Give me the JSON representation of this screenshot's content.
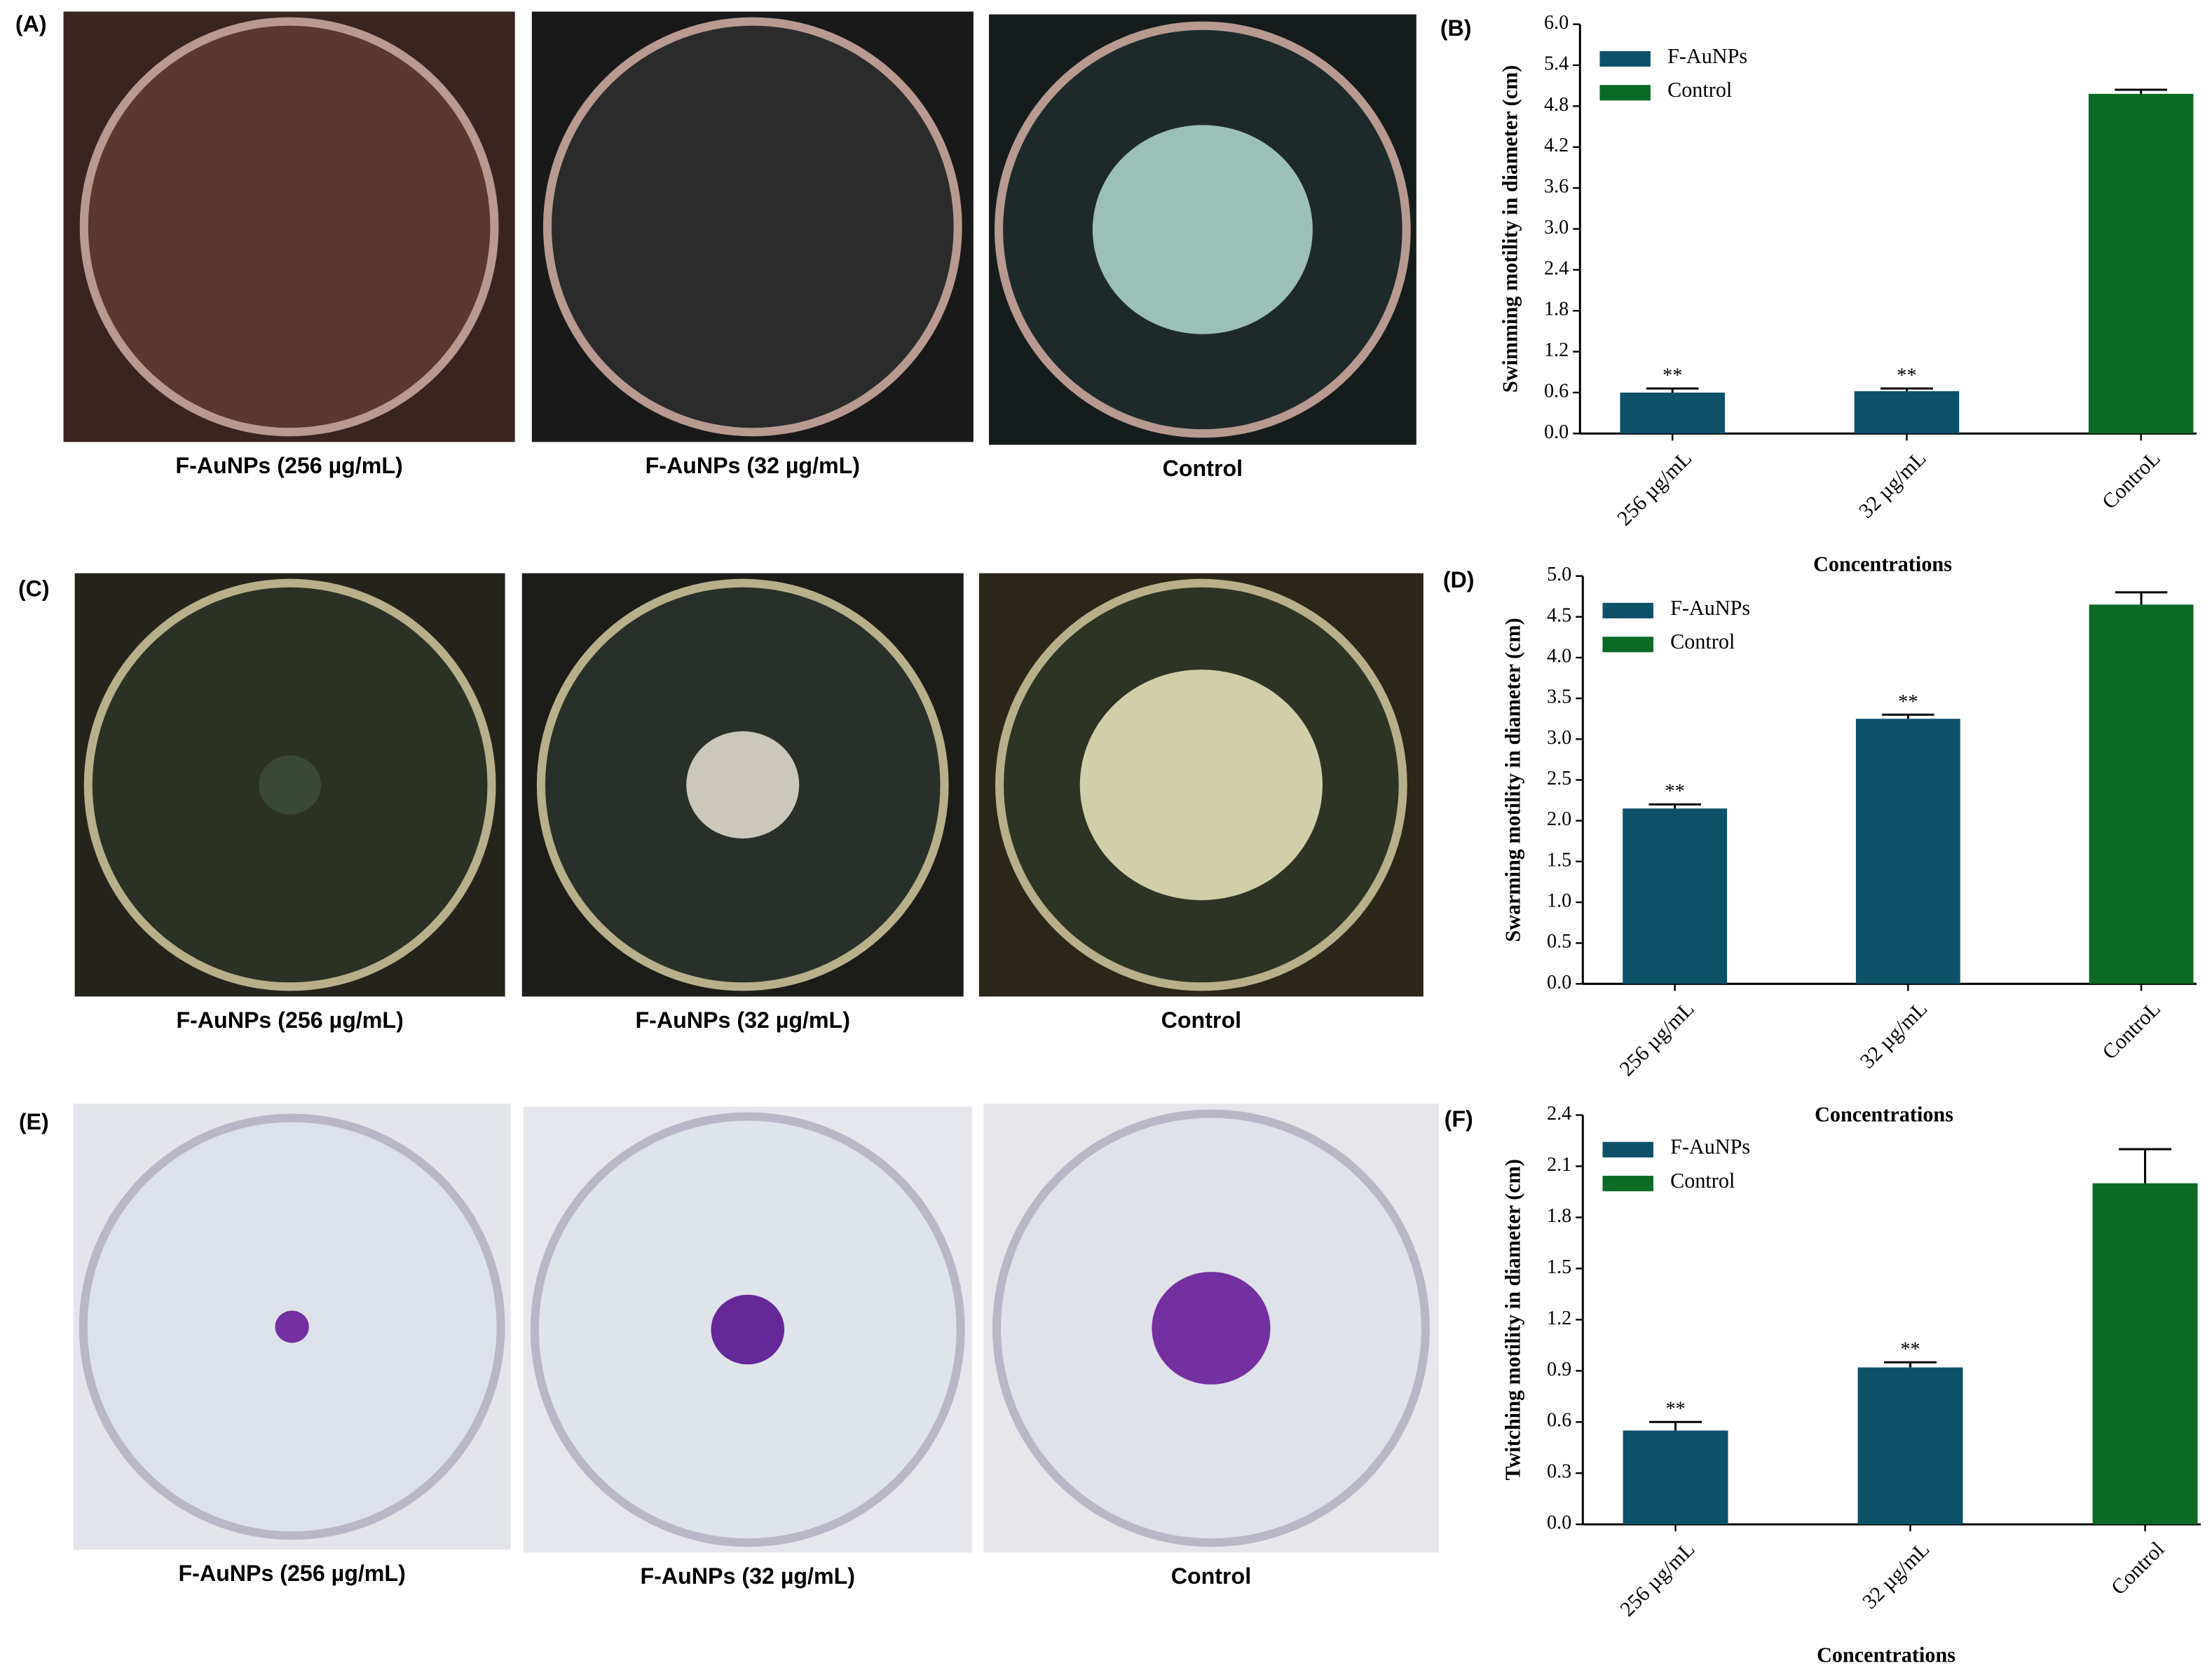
{
  "panels": [
    {
      "label": "(A)",
      "captions": [
        "F-AuNPs (256 µg/mL)",
        "F-AuNPs (32 µg/mL)",
        "Control"
      ]
    },
    {
      "label": "(C)",
      "captions": [
        "F-AuNPs (256 µg/mL)",
        "F-AuNPs (32 µg/mL)",
        "Control"
      ]
    },
    {
      "label": "(E)",
      "captions": [
        "F-AuNPs (256 µg/mL)",
        "F-AuNPs (32 µg/mL)",
        "Control"
      ]
    }
  ],
  "chart_data": [
    {
      "type": "bar",
      "panel": "(B)",
      "x_label": "Concentrations",
      "y_label": "Swimming motility in diameter (cm)",
      "categories": [
        "256 µg/mL",
        "32 µg/mL",
        "ControL"
      ],
      "series": [
        {
          "name": "F-AuNPs",
          "color": "#0d5169",
          "values": [
            0.6,
            0.62,
            null
          ],
          "errors": [
            0.06,
            0.04,
            null
          ]
        },
        {
          "name": "Control",
          "color": "#0b6a24",
          "values": [
            null,
            null,
            4.98
          ],
          "errors": [
            null,
            null,
            0.06
          ]
        }
      ],
      "significance": [
        "**",
        "**",
        null
      ],
      "ylim": [
        0,
        6
      ],
      "yticks": [
        {
          "value": 0,
          "label": "0.0"
        },
        0.6,
        1.2,
        1.8,
        2.4,
        {
          "value": 3,
          "label": "3.0"
        },
        3.6,
        4.2,
        4.8,
        5.4,
        {
          "value": 6,
          "label": "6.0"
        }
      ]
    },
    {
      "type": "bar",
      "panel": "(D)",
      "x_label": "Concentrations",
      "y_label": "Swarming motility in diameter (cm)",
      "categories": [
        "256 µg/mL",
        "32 µg/mL",
        "ControL"
      ],
      "series": [
        {
          "name": "F-AuNPs",
          "color": "#0d5169",
          "values": [
            2.15,
            3.25,
            null
          ],
          "errors": [
            0.05,
            0.05,
            null
          ]
        },
        {
          "name": "Control",
          "color": "#0b6a24",
          "values": [
            null,
            null,
            4.65
          ],
          "errors": [
            null,
            null,
            0.15
          ]
        }
      ],
      "significance": [
        "**",
        "**",
        null
      ],
      "ylim": [
        0,
        5
      ],
      "yticks": [
        {
          "value": 0,
          "label": "0.0"
        },
        0.5,
        {
          "value": 1,
          "label": "1.0"
        },
        1.5,
        {
          "value": 2,
          "label": "2.0"
        },
        2.5,
        {
          "value": 3,
          "label": "3.0"
        },
        3.5,
        {
          "value": 4,
          "label": "4.0"
        },
        4.5,
        {
          "value": 5,
          "label": "5.0"
        }
      ]
    },
    {
      "type": "bar",
      "panel": "(F)",
      "x_label": "Concentrations",
      "y_label": "Twitching motility in diameter (cm)",
      "categories": [
        "256 µg/mL",
        "32 µg/mL",
        "Control"
      ],
      "series": [
        {
          "name": "F-AuNPs",
          "color": "#0d5169",
          "values": [
            0.55,
            0.92,
            null
          ],
          "errors": [
            0.05,
            0.03,
            null
          ]
        },
        {
          "name": "Control",
          "color": "#0b6a24",
          "values": [
            null,
            null,
            2.0
          ],
          "errors": [
            null,
            null,
            0.2
          ]
        }
      ],
      "significance": [
        "**",
        "**",
        null
      ],
      "ylim": [
        0,
        2.4
      ],
      "yticks": [
        {
          "value": 0,
          "label": "0.0"
        },
        0.3,
        0.6,
        0.9,
        1.2,
        1.5,
        1.8,
        2.1,
        2.4
      ]
    }
  ]
}
